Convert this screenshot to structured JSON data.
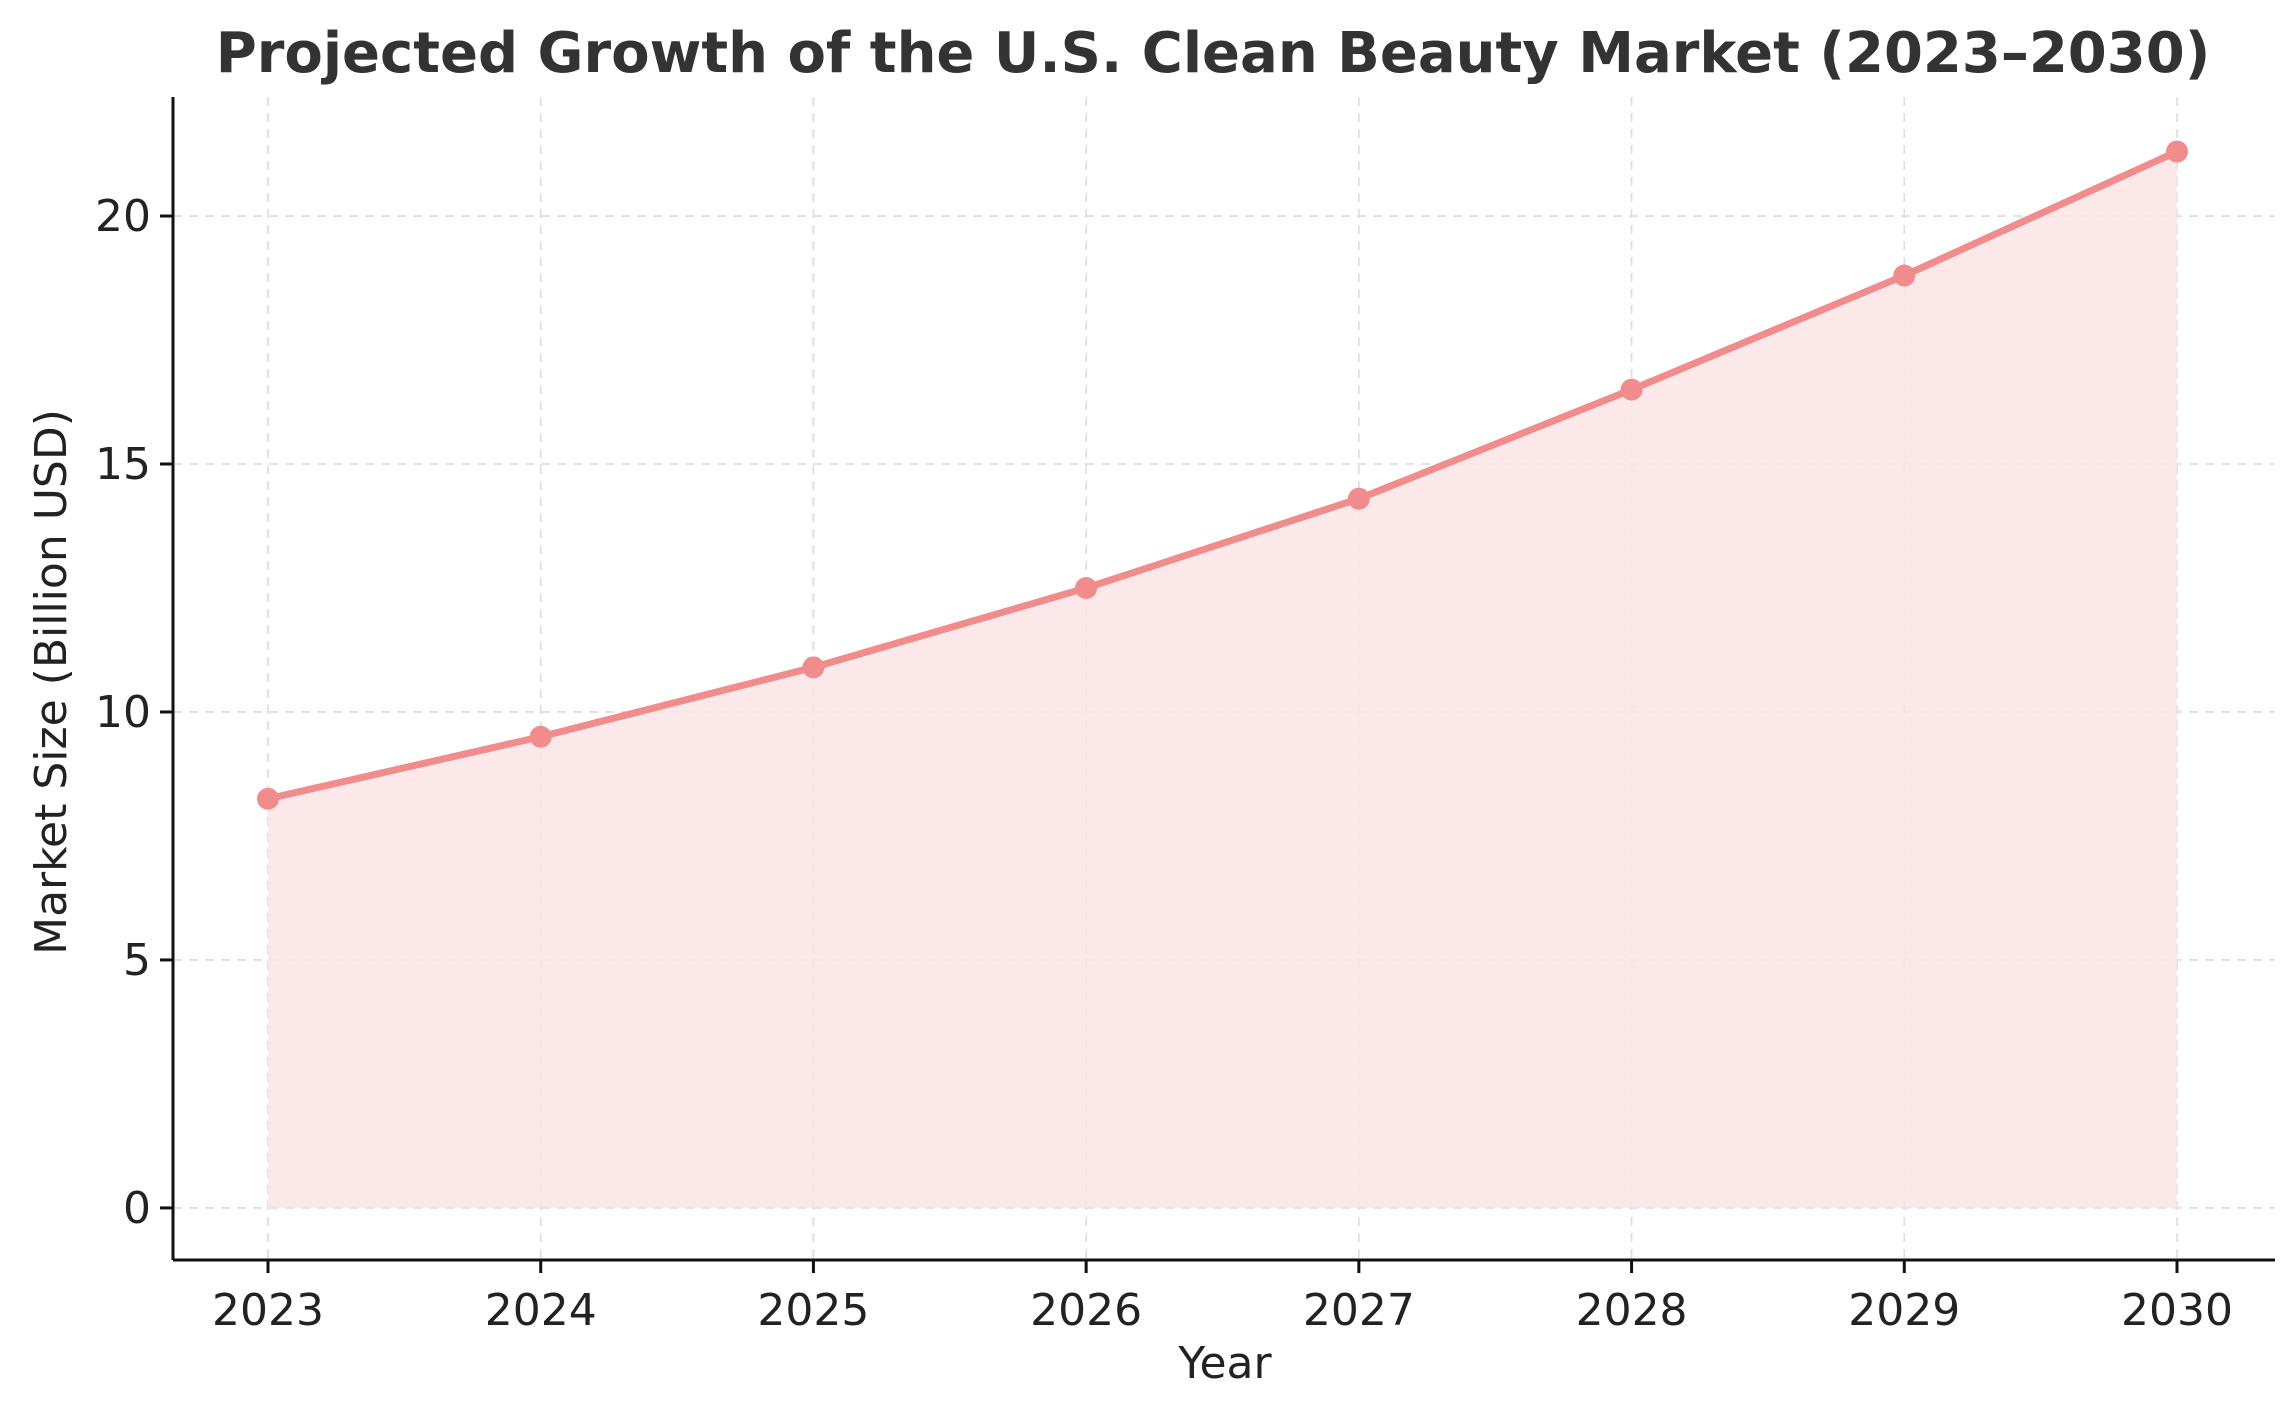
{
  "chart_data": {
    "type": "area",
    "title": "Projected Growth of the U.S. Clean Beauty Market (2023–2030)",
    "xlabel": "Year",
    "ylabel": "Market Size (Billion USD)",
    "categories": [
      "2023",
      "2024",
      "2025",
      "2026",
      "2027",
      "2028",
      "2029",
      "2030"
    ],
    "series": [
      {
        "values": [
          8.25,
          9.5,
          10.9,
          12.5,
          14.3,
          16.5,
          18.8,
          21.3
        ]
      }
    ],
    "ylim": [
      -1.05,
      22.4
    ],
    "yticks": [
      0,
      5,
      10,
      15,
      20
    ],
    "grid": true,
    "line_color": "#f08c8c",
    "fill_color": "#fce4e4",
    "marker": "circle"
  }
}
